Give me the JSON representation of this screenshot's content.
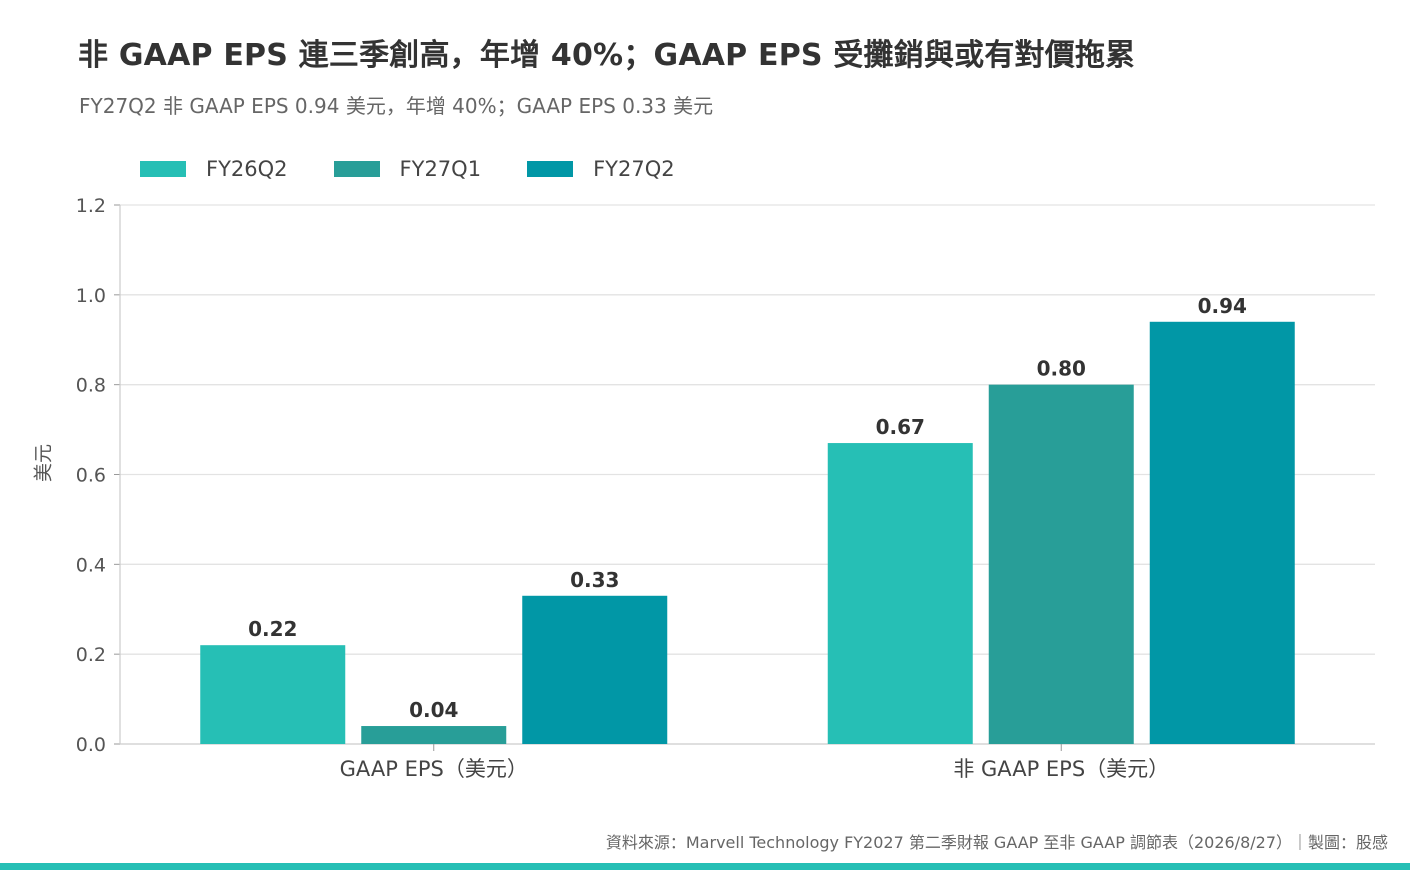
{
  "page": {
    "title": "非 GAAP EPS 連三季創高，年增 40%；GAAP EPS 受攤銷與或有對價拖累",
    "subtitle": "FY27Q2 非 GAAP EPS 0.94 美元，年增 40%；GAAP EPS 0.33 美元",
    "source": "資料來源：Marvell Technology FY2027 第二季財報 GAAP 至非 GAAP 調節表（2026/8/27）｜製圖：股感",
    "accent_color": "#26bfb5"
  },
  "chart_data": {
    "type": "bar",
    "title": "非 GAAP EPS 連三季創高，年增 40%；GAAP EPS 受攤銷與或有對價拖累",
    "subtitle": "FY27Q2 非 GAAP EPS 0.94 美元，年增 40%；GAAP EPS 0.33 美元",
    "categories": [
      "GAAP EPS（美元）",
      "非 GAAP EPS（美元）"
    ],
    "series": [
      {
        "name": "FY26Q2",
        "color": "#26bfb5",
        "values": [
          0.22,
          0.67
        ]
      },
      {
        "name": "FY27Q1",
        "color": "#289e98",
        "values": [
          0.04,
          0.8
        ]
      },
      {
        "name": "FY27Q2",
        "color": "#0197a6",
        "values": [
          0.33,
          0.94
        ]
      }
    ],
    "ylabel": "美元",
    "xlabel": "",
    "ylim": [
      0,
      1.2
    ],
    "yticks": [
      "0.0",
      "0.2",
      "0.4",
      "0.6",
      "0.8",
      "1.0",
      "1.2"
    ],
    "value_decimals": 2,
    "grid": true,
    "legend_position": "top-left"
  }
}
